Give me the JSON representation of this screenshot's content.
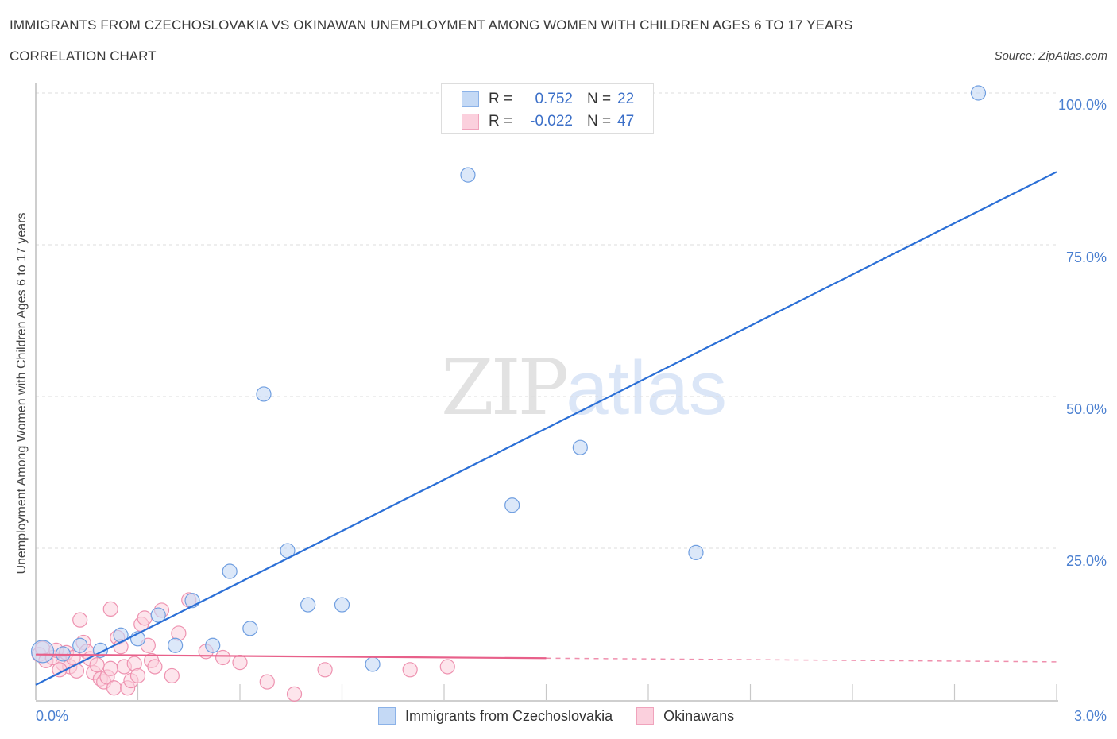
{
  "header": {
    "title": "IMMIGRANTS FROM CZECHOSLOVAKIA VS OKINAWAN UNEMPLOYMENT AMONG WOMEN WITH CHILDREN AGES 6 TO 17 YEARS",
    "subtitle": "CORRELATION CHART",
    "source": "Source: ZipAtlas.com"
  },
  "watermark": {
    "zip": "ZIP",
    "atlas": "atlas"
  },
  "legend": {
    "rows": [
      {
        "r_label": "R =",
        "r_value": "0.752",
        "n_label": "N =",
        "n_value": "22",
        "color": "#a9c8f0"
      },
      {
        "r_label": "R =",
        "r_value": "-0.022",
        "n_label": "N =",
        "n_value": "47",
        "color": "#f7b8cb"
      }
    ]
  },
  "bottom_legend": {
    "series1": "Immigrants from Czechoslovakia",
    "series2": "Okinawans"
  },
  "axes": {
    "ylabel": "Unemployment Among Women with Children Ages 6 to 17 years",
    "yticks": [
      "100.0%",
      "75.0%",
      "50.0%",
      "25.0%"
    ],
    "xtick_min": "0.0%",
    "xtick_max": "3.0%"
  },
  "colors": {
    "blue": "#2b6fd6",
    "blue_fill": "#c4d9f5",
    "blue_stroke": "#6f9ee0",
    "pink": "#e8608a",
    "pink_fill": "#fbd0dd",
    "pink_stroke": "#ee92b0",
    "tick_text": "#4a7fd0"
  },
  "chart_data": {
    "type": "scatter",
    "title": "IMMIGRANTS FROM CZECHOSLOVAKIA VS OKINAWAN UNEMPLOYMENT AMONG WOMEN WITH CHILDREN AGES 6 TO 17 YEARS",
    "subtitle": "CORRELATION CHART",
    "xlabel": "",
    "ylabel": "Unemployment Among Women with Children Ages 6 to 17 years",
    "xlim": [
      0,
      3.0
    ],
    "ylim": [
      0,
      100
    ],
    "x_unit": "%",
    "y_unit": "%",
    "yticks": [
      25,
      50,
      75,
      100
    ],
    "xticks_labeled": [
      0,
      3.0
    ],
    "grid": "horizontal dashed",
    "legend_position": "top-center (stats) and bottom-center (series)",
    "series": [
      {
        "name": "Immigrants from Czechoslovakia",
        "R": 0.752,
        "N": 22,
        "color": "#6f9ee0",
        "trend": {
          "x": [
            0,
            3.0
          ],
          "y": [
            2.5,
            87
          ]
        },
        "points": [
          [
            2.77,
            100.0
          ],
          [
            1.27,
            86.5
          ],
          [
            0.67,
            50.4
          ],
          [
            1.6,
            41.6
          ],
          [
            1.4,
            32.1
          ],
          [
            1.94,
            24.3
          ],
          [
            0.74,
            24.6
          ],
          [
            0.57,
            21.2
          ],
          [
            0.8,
            15.7
          ],
          [
            0.9,
            15.7
          ],
          [
            0.46,
            16.4
          ],
          [
            0.63,
            11.8
          ],
          [
            0.36,
            14.0
          ],
          [
            0.25,
            10.7
          ],
          [
            0.3,
            10.1
          ],
          [
            0.41,
            9.0
          ],
          [
            0.52,
            9.0
          ],
          [
            0.19,
            8.2
          ],
          [
            0.13,
            9.0
          ],
          [
            0.02,
            8.0
          ],
          [
            0.08,
            7.6
          ],
          [
            0.99,
            5.9
          ]
        ]
      },
      {
        "name": "Okinawans",
        "R": -0.022,
        "N": 47,
        "color": "#ee92b0",
        "trend": {
          "x": [
            0,
            3.0
          ],
          "y": [
            7.5,
            6.3
          ],
          "solid_until_x": 1.5
        },
        "points": [
          [
            0.01,
            7.5
          ],
          [
            0.02,
            8.5
          ],
          [
            0.03,
            6.5
          ],
          [
            0.05,
            7.0
          ],
          [
            0.06,
            8.2
          ],
          [
            0.08,
            6.0
          ],
          [
            0.09,
            7.8
          ],
          [
            0.1,
            5.5
          ],
          [
            0.11,
            7.0
          ],
          [
            0.12,
            4.8
          ],
          [
            0.13,
            13.2
          ],
          [
            0.14,
            9.5
          ],
          [
            0.15,
            8.0
          ],
          [
            0.17,
            4.5
          ],
          [
            0.19,
            3.5
          ],
          [
            0.2,
            3.0
          ],
          [
            0.21,
            3.8
          ],
          [
            0.22,
            5.2
          ],
          [
            0.23,
            2.0
          ],
          [
            0.22,
            15.0
          ],
          [
            0.24,
            10.3
          ],
          [
            0.25,
            8.8
          ],
          [
            0.26,
            5.5
          ],
          [
            0.27,
            2.0
          ],
          [
            0.28,
            3.2
          ],
          [
            0.29,
            6.0
          ],
          [
            0.3,
            4.0
          ],
          [
            0.31,
            12.5
          ],
          [
            0.32,
            13.5
          ],
          [
            0.33,
            9.0
          ],
          [
            0.34,
            6.5
          ],
          [
            0.35,
            5.5
          ],
          [
            0.37,
            14.8
          ],
          [
            0.4,
            4.0
          ],
          [
            0.42,
            11.0
          ],
          [
            0.45,
            16.5
          ],
          [
            0.5,
            8.0
          ],
          [
            0.55,
            7.0
          ],
          [
            0.6,
            6.2
          ],
          [
            0.68,
            3.0
          ],
          [
            0.76,
            1.0
          ],
          [
            0.85,
            5.0
          ],
          [
            1.1,
            5.0
          ],
          [
            1.21,
            5.5
          ],
          [
            0.16,
            6.8
          ],
          [
            0.18,
            5.8
          ],
          [
            0.07,
            5.0
          ]
        ]
      }
    ]
  }
}
